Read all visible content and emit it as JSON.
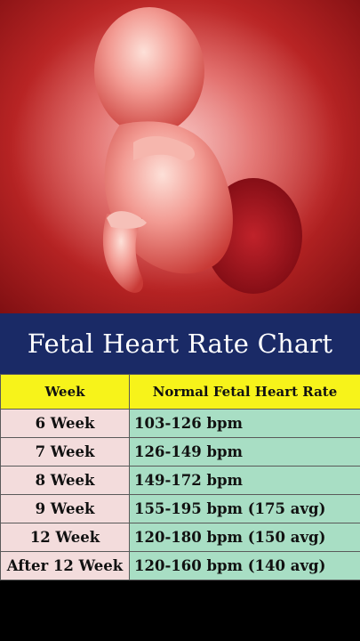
{
  "title": "Fetal Heart Rate Chart",
  "table": {
    "headers": [
      "Week",
      "Normal Fetal Heart Rate"
    ],
    "rows": [
      {
        "week": "6 Week",
        "rate": "103-126 bpm"
      },
      {
        "week": "7 Week",
        "rate": "126-149 bpm"
      },
      {
        "week": "8 Week",
        "rate": "149-172 bpm"
      },
      {
        "week": "9 Week",
        "rate": "155-195 bpm (175 avg)"
      },
      {
        "week": "12 Week",
        "rate": "120-180 bpm (150 avg)"
      },
      {
        "week": "After 12 Week",
        "rate": "120-160 bpm (140 avg)"
      }
    ]
  },
  "colors": {
    "title_bg": "#1a2a66",
    "header_bg": "#f7f31a",
    "week_bg": "#f3dcdc",
    "rate_bg": "#a8dec4"
  },
  "image": {
    "subject": "fetus-illustration"
  }
}
